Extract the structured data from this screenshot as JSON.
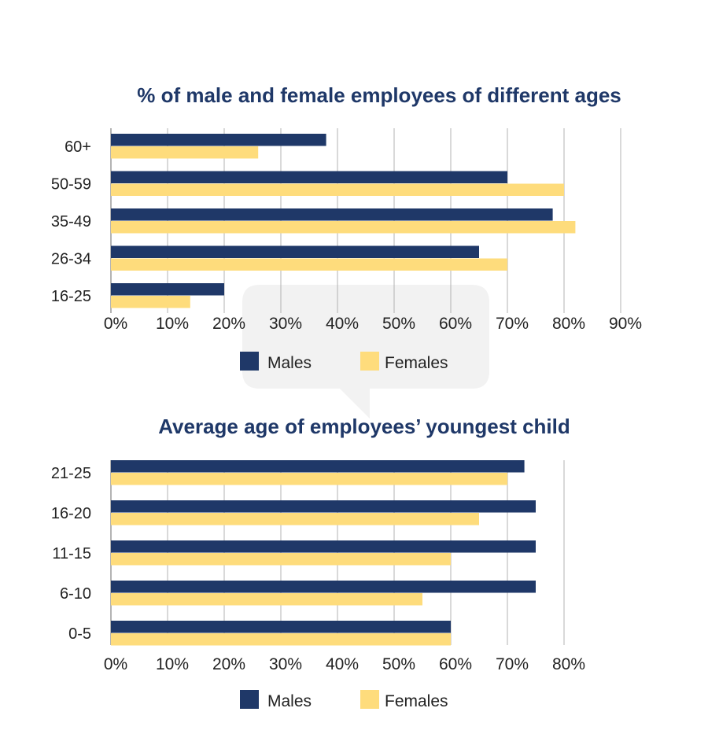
{
  "colors": {
    "males": "#1f3868",
    "females": "#fedc7c",
    "title": "#1f3868",
    "text": "#222222",
    "grid": "#b3b3b3",
    "axis": "#9a9a9a",
    "watermark": "#f2f2f2"
  },
  "chart_data": [
    {
      "type": "bar",
      "orientation": "horizontal",
      "title": "% of male and female employees of different ages",
      "categories": [
        "60+",
        "50-59",
        "35-49",
        "26-34",
        "16-25"
      ],
      "series": [
        {
          "name": "Males",
          "values": [
            38,
            70,
            78,
            65,
            20
          ]
        },
        {
          "name": "Females",
          "values": [
            26,
            80,
            82,
            70,
            14
          ]
        }
      ],
      "xlim": [
        0,
        90
      ],
      "x_ticks": [
        "0%",
        "10%",
        "20%",
        "30%",
        "40%",
        "50%",
        "60%",
        "70%",
        "80%",
        "90%"
      ],
      "grid": true,
      "legend": "bottom"
    },
    {
      "type": "bar",
      "orientation": "horizontal",
      "title": "Average age of employees’ youngest child",
      "categories": [
        "21-25",
        "16-20",
        "11-15",
        "6-10",
        "0-5"
      ],
      "series": [
        {
          "name": "Males",
          "values": [
            73,
            75,
            75,
            75,
            60
          ]
        },
        {
          "name": "Females",
          "values": [
            70,
            65,
            60,
            55,
            60
          ]
        }
      ],
      "xlim": [
        0,
        80
      ],
      "x_ticks": [
        "0%",
        "10%",
        "20%",
        "30%",
        "40%",
        "50%",
        "60%",
        "70%",
        "80%"
      ],
      "grid": true,
      "legend": "bottom"
    }
  ]
}
